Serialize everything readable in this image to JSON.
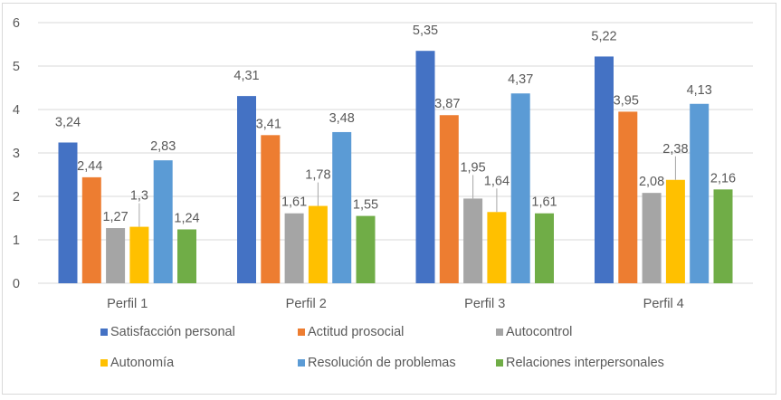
{
  "chart_data": {
    "type": "bar",
    "title": "",
    "xlabel": "",
    "ylabel": "",
    "ylim": [
      0,
      6
    ],
    "yticks": [
      "0",
      "1",
      "2",
      "3",
      "4",
      "5",
      "6"
    ],
    "grid": true,
    "legend_position": "bottom",
    "categories": [
      "Perfil 1",
      "Perfil 2",
      "Perfil 3",
      "Perfil 4"
    ],
    "series": [
      {
        "name": "Satisfacción personal",
        "color": "#4472c4",
        "values": [
          3.24,
          4.31,
          5.35,
          5.22
        ],
        "labels": [
          "3,24",
          "4,31",
          "5,35",
          "5,22"
        ]
      },
      {
        "name": "Actitud prosocial",
        "color": "#ed7d31",
        "values": [
          2.44,
          3.41,
          3.87,
          3.95
        ],
        "labels": [
          "2,44",
          "3,41",
          "3,87",
          "3,95"
        ]
      },
      {
        "name": "Autocontrol",
        "color": "#a5a5a5",
        "values": [
          1.27,
          1.61,
          1.95,
          2.08
        ],
        "labels": [
          "1,27",
          "1,61",
          "1,95",
          "2,08"
        ]
      },
      {
        "name": "Autonomía",
        "color": "#ffc000",
        "values": [
          1.3,
          1.78,
          1.64,
          2.38
        ],
        "labels": [
          "1,3",
          "1,78",
          "1,64",
          "2,38"
        ]
      },
      {
        "name": "Resolución de problemas",
        "color": "#5b9bd5",
        "values": [
          2.83,
          3.48,
          4.37,
          4.13
        ],
        "labels": [
          "2,83",
          "3,48",
          "4,37",
          "4,13"
        ]
      },
      {
        "name": "Relaciones interpersonales",
        "color": "#70ad47",
        "values": [
          1.24,
          1.55,
          1.61,
          2.16
        ],
        "labels": [
          "1,24",
          "1,55",
          "1,61",
          "2,16"
        ]
      }
    ]
  }
}
